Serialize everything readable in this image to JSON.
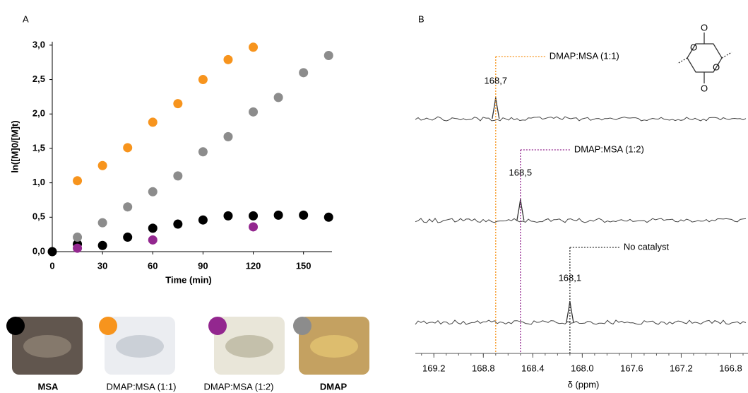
{
  "chart_data": [
    {
      "type": "scatter",
      "panel": "A",
      "xlabel": "Time (min)",
      "ylabel": "ln([M]0/[M]t)",
      "xlim": [
        0,
        167
      ],
      "xticks": [
        0,
        30,
        60,
        90,
        120,
        150
      ],
      "ylim": [
        0,
        3.05
      ],
      "yticks": [
        {
          "value": 0,
          "label": "0,0"
        },
        {
          "value": 0.5,
          "label": "0,5"
        },
        {
          "value": 1,
          "label": "1,0"
        },
        {
          "value": 1.5,
          "label": "1,5"
        },
        {
          "value": 2,
          "label": "2,0"
        },
        {
          "value": 2.5,
          "label": "2,5"
        },
        {
          "value": 3,
          "label": "3,0"
        }
      ],
      "series": [
        {
          "name": "MSA",
          "color": "#000000",
          "x": [
            0,
            15,
            30,
            45,
            60,
            75,
            90,
            105,
            120,
            135,
            150,
            165
          ],
          "values": [
            0.0,
            0.11,
            0.09,
            0.21,
            0.34,
            0.4,
            0.46,
            0.52,
            0.52,
            0.53,
            0.53,
            0.5
          ]
        },
        {
          "name": "DMAP:MSA (1:1)",
          "color": "#f7941d",
          "x": [
            15,
            30,
            45,
            60,
            75,
            90,
            105,
            120
          ],
          "values": [
            1.03,
            1.25,
            1.51,
            1.88,
            2.15,
            2.5,
            2.79,
            2.97
          ]
        },
        {
          "name": "DMAP:MSA (1:2)",
          "color": "#93278f",
          "x": [
            15,
            60,
            120
          ],
          "values": [
            0.05,
            0.17,
            0.36
          ]
        },
        {
          "name": "DMAP",
          "color": "#8c8c8c",
          "x": [
            15,
            30,
            45,
            60,
            75,
            90,
            105,
            120,
            135,
            150,
            165
          ],
          "values": [
            0.21,
            0.42,
            0.65,
            0.87,
            1.1,
            1.45,
            1.67,
            2.03,
            2.24,
            2.6,
            2.85
          ]
        }
      ]
    },
    {
      "type": "spectrum",
      "panel": "B",
      "xlabel": "δ (ppm)",
      "xlim": [
        169.35,
        166.66
      ],
      "xticks": [
        169.2,
        168.8,
        168.4,
        {
          "value": 168,
          "label": "168.0"
        },
        167.6,
        167.2,
        166.8
      ],
      "series": [
        {
          "name": "DMAP:MSA (1:1)",
          "color": "#f7941d",
          "values": [
            168.7
          ],
          "value_labels": [
            "168,7"
          ]
        },
        {
          "name": "DMAP:MSA (1:2)",
          "color": "#93278f",
          "values": [
            168.5
          ],
          "value_labels": [
            "168,5"
          ]
        },
        {
          "name": "No catalyst",
          "color": "#333333",
          "values": [
            168.1
          ],
          "value_labels": [
            "168,1"
          ]
        }
      ]
    }
  ],
  "structure": {
    "atoms": [
      "O",
      "O",
      "O",
      "O"
    ]
  }
}
